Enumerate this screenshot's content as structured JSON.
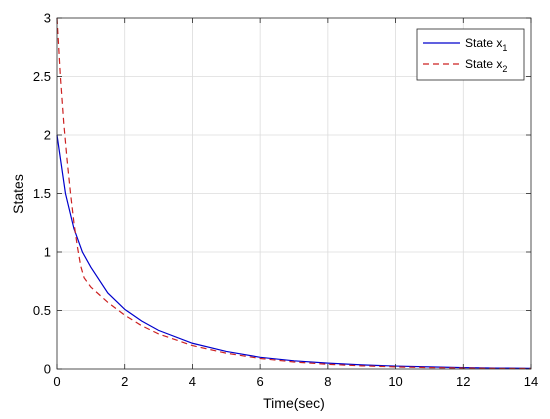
{
  "chart_data": {
    "type": "line",
    "title": "",
    "xlabel": "Time(sec)",
    "ylabel": "States",
    "xlim": [
      0,
      14
    ],
    "ylim": [
      0,
      3
    ],
    "xticks": [
      0,
      2,
      4,
      6,
      8,
      10,
      12,
      14
    ],
    "yticks": [
      0,
      0.5,
      1,
      1.5,
      2,
      2.5,
      3
    ],
    "xtick_labels": [
      "0",
      "2",
      "4",
      "6",
      "8",
      "10",
      "12",
      "14"
    ],
    "ytick_labels": [
      "0",
      "0.5",
      "1",
      "1.5",
      "2",
      "2.5",
      "3"
    ],
    "grid": true,
    "legend_position": "top-right",
    "series": [
      {
        "name": "State x",
        "subscript": "1",
        "color": "#0000cc",
        "style": "solid",
        "x": [
          0,
          0.25,
          0.5,
          0.75,
          1,
          1.5,
          2,
          2.5,
          3,
          4,
          5,
          6,
          7,
          8,
          9,
          10,
          11,
          12,
          13,
          14
        ],
        "y": [
          2.0,
          1.5,
          1.2,
          1.0,
          0.87,
          0.65,
          0.51,
          0.41,
          0.33,
          0.22,
          0.15,
          0.1,
          0.07,
          0.05,
          0.035,
          0.025,
          0.018,
          0.012,
          0.008,
          0.006
        ]
      },
      {
        "name": "State x",
        "subscript": "2",
        "color": "#cc2222",
        "style": "dashed",
        "x": [
          0,
          0.1,
          0.2,
          0.3,
          0.4,
          0.5,
          0.6,
          0.7,
          0.8,
          1,
          1.5,
          2,
          2.5,
          3,
          4,
          5,
          6,
          7,
          8,
          9,
          10,
          11,
          12,
          13,
          14
        ],
        "y": [
          3.0,
          2.5,
          2.1,
          1.78,
          1.5,
          1.25,
          1.05,
          0.88,
          0.78,
          0.7,
          0.57,
          0.46,
          0.37,
          0.3,
          0.2,
          0.135,
          0.09,
          0.06,
          0.04,
          0.027,
          0.018,
          0.012,
          0.008,
          0.005,
          0.004
        ]
      }
    ]
  }
}
